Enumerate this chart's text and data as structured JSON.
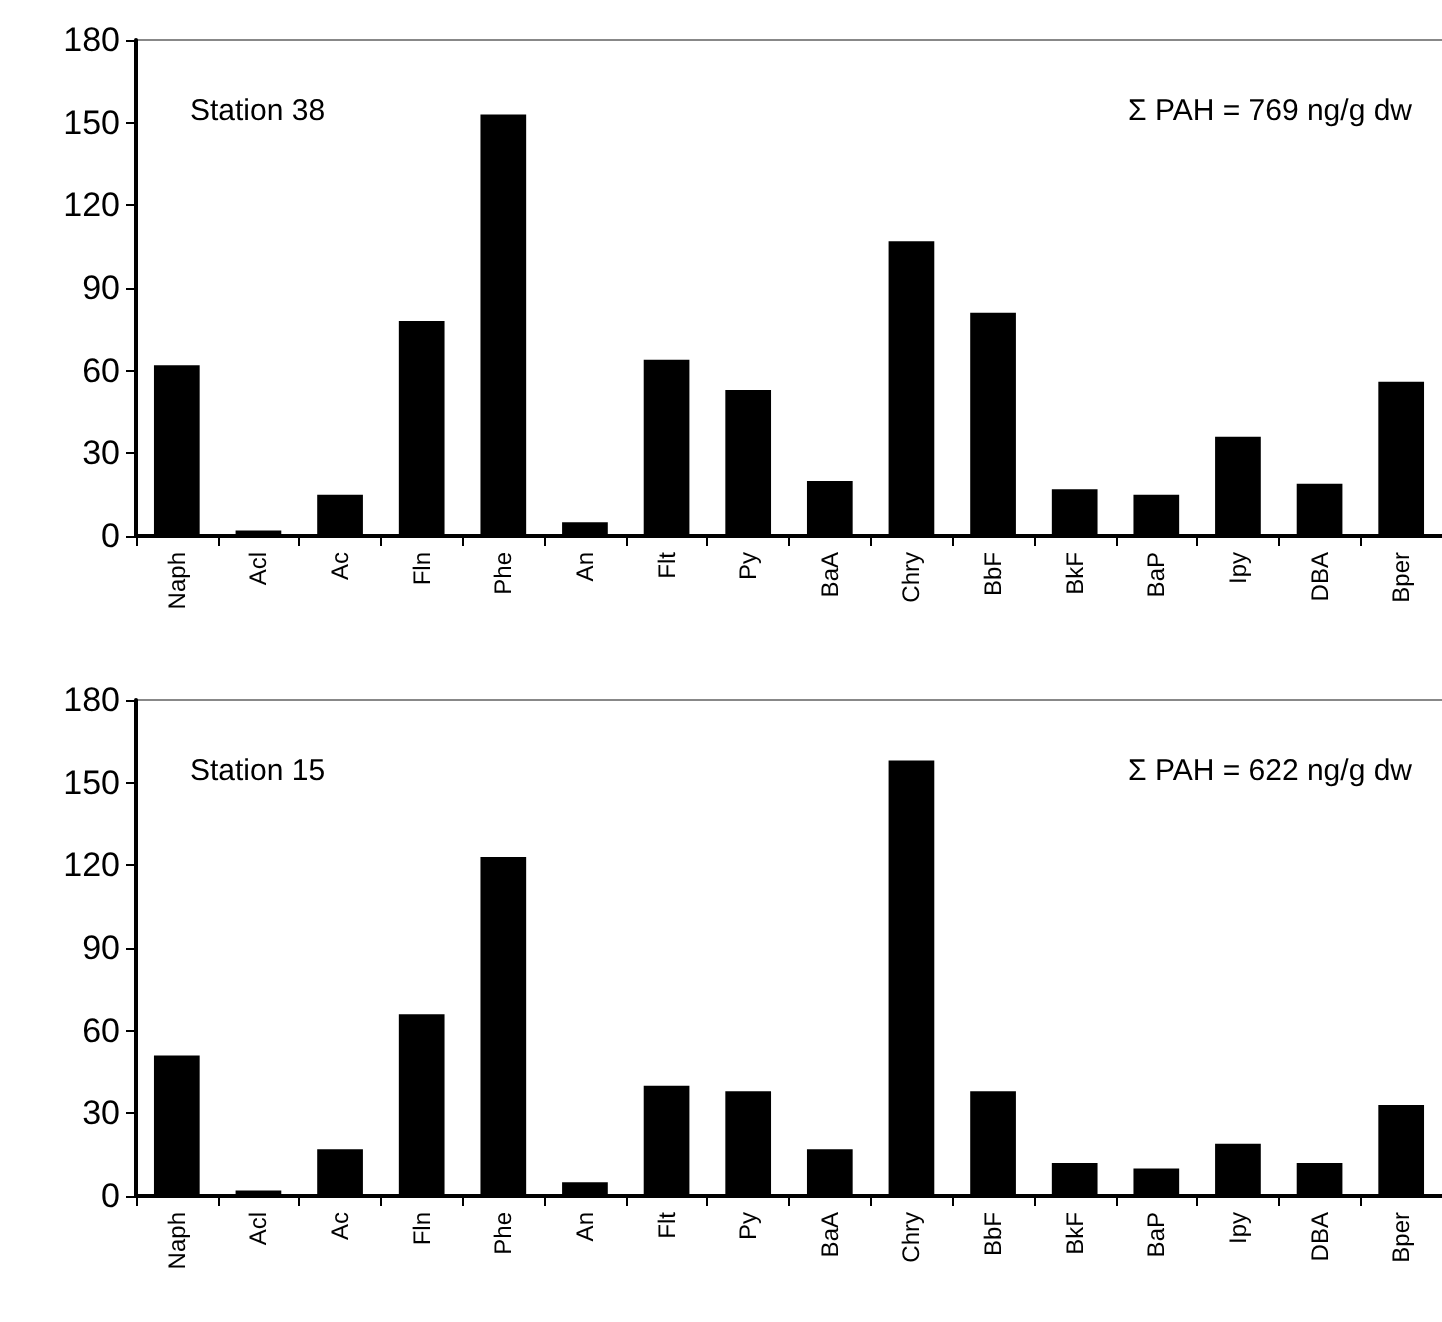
{
  "chart_data": [
    {
      "type": "bar",
      "categories": [
        "Naph",
        "Acl",
        "Ac",
        "Fln",
        "Phe",
        "An",
        "Flt",
        "Py",
        "BaA",
        "Chry",
        "BbF",
        "BkF",
        "BaP",
        "Ipy",
        "DBA",
        "Bper"
      ],
      "values": [
        62,
        2,
        15,
        78,
        153,
        5,
        64,
        53,
        20,
        107,
        81,
        17,
        15,
        36,
        19,
        56
      ],
      "color": "#000000",
      "ylim": [
        0,
        180
      ],
      "yticks": [
        0,
        30,
        60,
        90,
        120,
        150,
        180
      ],
      "grid": false,
      "annotations": [
        "Station 38",
        "Σ PAH = 769 ng/g dw"
      ]
    },
    {
      "type": "bar",
      "categories": [
        "Naph",
        "Acl",
        "Ac",
        "Fln",
        "Phe",
        "An",
        "Flt",
        "Py",
        "BaA",
        "Chry",
        "BbF",
        "BkF",
        "BaP",
        "Ipy",
        "DBA",
        "Bper"
      ],
      "values": [
        51,
        2,
        17,
        66,
        123,
        5,
        40,
        38,
        17,
        158,
        38,
        12,
        10,
        19,
        12,
        33
      ],
      "color": "#000000",
      "ylim": [
        0,
        180
      ],
      "yticks": [
        0,
        30,
        60,
        90,
        120,
        150,
        180
      ],
      "grid": false,
      "annotations": [
        "Station 15",
        "Σ PAH = 622 ng/g dw"
      ]
    }
  ]
}
